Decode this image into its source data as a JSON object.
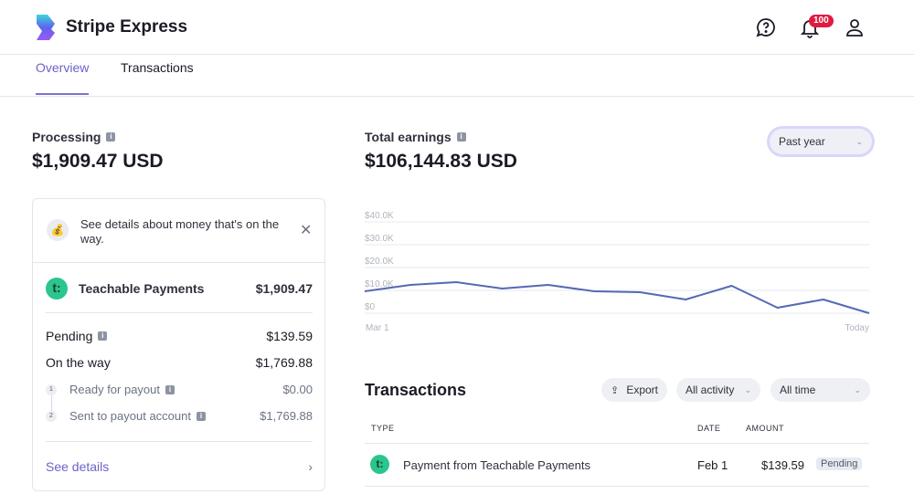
{
  "header": {
    "brand": "Stripe Express",
    "notification_count": "100",
    "icons": [
      "help-icon",
      "bell-icon",
      "user-icon"
    ]
  },
  "tabs": [
    {
      "label": "Overview",
      "active": true
    },
    {
      "label": "Transactions",
      "active": false
    }
  ],
  "processing": {
    "label": "Processing",
    "amount": "$1,909.47 USD",
    "notice": "See details about money that's on the way.",
    "account_name": "Teachable Payments",
    "account_initial": "t:",
    "account_amount": "$1,909.47",
    "pending_label": "Pending",
    "pending_amount": "$139.59",
    "on_the_way_label": "On the way",
    "on_the_way_amount": "$1,769.88",
    "steps": [
      {
        "num": "1",
        "label": "Ready for payout",
        "amount": "$0.00"
      },
      {
        "num": "2",
        "label": "Sent to payout account",
        "amount": "$1,769.88"
      }
    ],
    "see_details": "See details"
  },
  "earnings": {
    "label": "Total earnings",
    "amount": "$106,144.83 USD",
    "period": "Past year"
  },
  "chart_data": {
    "type": "line",
    "title": "Total earnings",
    "x_labels": [
      "Mar 1",
      "Today"
    ],
    "y_ticks": [
      "$40.0K",
      "$30.0K",
      "$20.0K",
      "$10.0K",
      "$0"
    ],
    "ylim": [
      0,
      40000
    ],
    "series": [
      {
        "name": "Earnings",
        "values": [
          9600,
          12400,
          13600,
          10800,
          12400,
          9600,
          9200,
          6000,
          12000,
          2400,
          6000,
          0
        ]
      }
    ],
    "color": "#5469b4",
    "grid": true
  },
  "transactions": {
    "title": "Transactions",
    "export_label": "Export",
    "activity_filter": "All activity",
    "time_filter": "All time",
    "columns": [
      "TYPE",
      "DATE",
      "AMOUNT"
    ],
    "rows": [
      {
        "icon": "t:",
        "type": "Payment from Teachable Payments",
        "date": "Feb 1",
        "amount": "$139.59",
        "status": "Pending"
      }
    ]
  }
}
